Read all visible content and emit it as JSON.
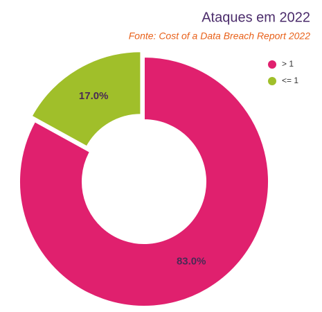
{
  "chart_data": {
    "type": "donut",
    "title": "Ataques em 2022",
    "subtitle": "Fonte: Cost of a Data Breach Report 2022",
    "series": [
      {
        "name": "> 1",
        "color": "#e0206e"
      },
      {
        "name": "<= 1",
        "color": "#a0bf2a"
      }
    ],
    "values": [
      83,
      17
    ],
    "value_labels": [
      "83.0%",
      "17.0%"
    ],
    "legend": "upper right"
  }
}
